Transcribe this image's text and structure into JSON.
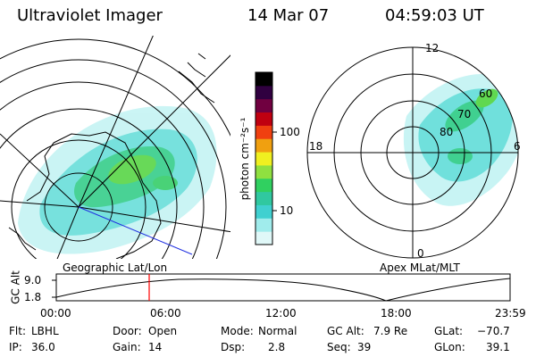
{
  "header": {
    "instrument": "Ultraviolet Imager",
    "date": "14 Mar 07",
    "time": "04:59:03 UT"
  },
  "colorbar": {
    "unit_label": "photon cm⁻²s⁻¹",
    "ticks": [
      "100",
      "10"
    ],
    "colors": [
      "#e0f8f8",
      "#a0ecec",
      "#40d0d0",
      "#30c8a0",
      "#30d060",
      "#90e040",
      "#f0f020",
      "#f0a010",
      "#f04010",
      "#c00010",
      "#700040",
      "#300040",
      "#000000"
    ]
  },
  "left_map": {
    "label": "Geographic Lat/Lon"
  },
  "right_map": {
    "label": "Apex  MLat/MLT",
    "mlt_labels": {
      "top": "12",
      "left": "18",
      "right": "6",
      "bottom": "0"
    },
    "lat_labels": [
      "60",
      "70",
      "80"
    ]
  },
  "timeline": {
    "axis_label": "GC Alt",
    "y_ticks": [
      "9.0",
      "1.8"
    ],
    "x_ticks": [
      "00:00",
      "06:00",
      "12:00",
      "18:00",
      "23:59"
    ],
    "marker_color": "#ff0000"
  },
  "info": {
    "filter_label": "Flt:",
    "filter_value": "LBHL",
    "ip_label": "IP:",
    "ip_value": "36.0",
    "door_label": "Door:",
    "door_value": "Open",
    "gain_label": "Gain:",
    "gain_value": "14",
    "mode_label": "Mode:",
    "mode_value": "Normal",
    "dsp_label": "Dsp:",
    "dsp_value": "2.8",
    "gcalt_label": "GC Alt:",
    "gcalt_value": "7.9 Re",
    "seq_label": "Seq:",
    "seq_value": "39",
    "glat_label": "GLat:",
    "glat_value": "−70.7",
    "glon_label": "GLon:",
    "glon_value": "39.1"
  }
}
